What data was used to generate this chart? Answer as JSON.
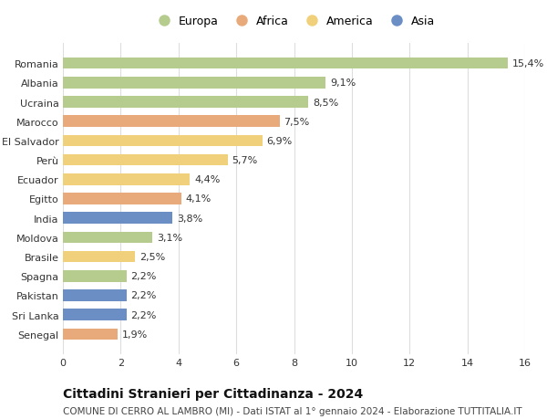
{
  "categories": [
    "Romania",
    "Albania",
    "Ucraina",
    "Marocco",
    "El Salvador",
    "Perù",
    "Ecuador",
    "Egitto",
    "India",
    "Moldova",
    "Brasile",
    "Spagna",
    "Pakistan",
    "Sri Lanka",
    "Senegal"
  ],
  "values": [
    15.4,
    9.1,
    8.5,
    7.5,
    6.9,
    5.7,
    4.4,
    4.1,
    3.8,
    3.1,
    2.5,
    2.2,
    2.2,
    2.2,
    1.9
  ],
  "labels": [
    "15,4%",
    "9,1%",
    "8,5%",
    "7,5%",
    "6,9%",
    "5,7%",
    "4,4%",
    "4,1%",
    "3,8%",
    "3,1%",
    "2,5%",
    "2,2%",
    "2,2%",
    "2,2%",
    "1,9%"
  ],
  "continents": [
    "Europa",
    "Europa",
    "Europa",
    "Africa",
    "America",
    "America",
    "America",
    "Africa",
    "Asia",
    "Europa",
    "America",
    "Europa",
    "Asia",
    "Asia",
    "Africa"
  ],
  "continent_colors": {
    "Europa": "#b5cc8e",
    "Africa": "#e8aa7a",
    "America": "#f0d07a",
    "Asia": "#6b8ec4"
  },
  "legend_order": [
    "Europa",
    "Africa",
    "America",
    "Asia"
  ],
  "title": "Cittadini Stranieri per Cittadinanza - 2024",
  "subtitle": "COMUNE DI CERRO AL LAMBRO (MI) - Dati ISTAT al 1° gennaio 2024 - Elaborazione TUTTITALIA.IT",
  "xlim": [
    0,
    16
  ],
  "xticks": [
    0,
    2,
    4,
    6,
    8,
    10,
    12,
    14,
    16
  ],
  "background_color": "#ffffff",
  "bar_height": 0.6,
  "grid_color": "#dddddd",
  "title_fontsize": 10,
  "subtitle_fontsize": 7.5,
  "label_fontsize": 8,
  "tick_fontsize": 8,
  "legend_fontsize": 9
}
